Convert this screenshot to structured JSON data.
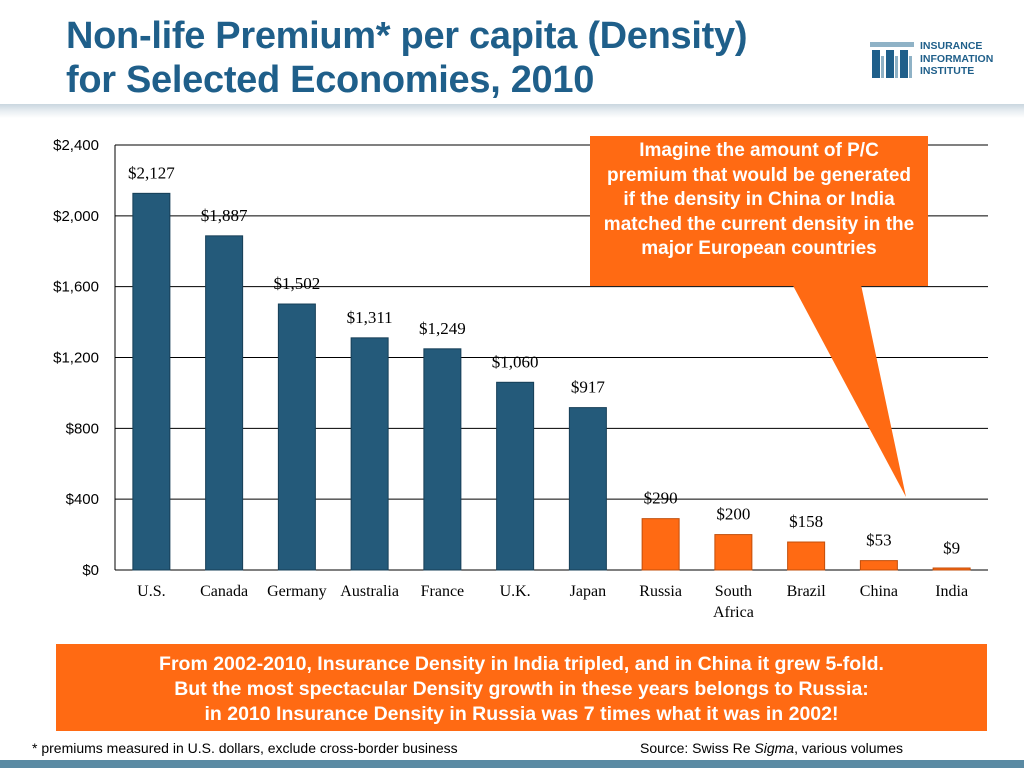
{
  "title_line1": "Non-life Premium* per capita (Density)",
  "title_line2": "for Selected Economies, 2010",
  "logo": {
    "line1": "INSURANCE",
    "line2": "INFORMATION",
    "line3": "INSTITUTE",
    "color": "#1f5f8a"
  },
  "callout_text": "Imagine the amount of P/C premium that would be generated if the density in China or India matched the current density in the major European countries",
  "bottom_box": {
    "line1": "From 2002-2010, Insurance Density in India tripled, and in China it grew 5-fold.",
    "line2": "But the most spectacular Density growth in these years belongs to Russia:",
    "line3": "in 2010 Insurance Density in Russia was 7 times what it was in 2002!"
  },
  "footnote": "* premiums measured in U.S. dollars, exclude cross-border business",
  "source_prefix": "Source: Swiss Re ",
  "source_italic": "Sigma",
  "source_suffix": ", various volumes",
  "colors": {
    "blue_bar": "#245a7a",
    "orange_bar": "#ff6a13",
    "title": "#1f5f8a",
    "callout": "#ff6a13"
  },
  "chart_data": {
    "type": "bar",
    "categories": [
      "U.S.",
      "Canada",
      "Germany",
      "Australia",
      "France",
      "U.K.",
      "Japan",
      "Russia",
      "South Africa",
      "Brazil",
      "China",
      "India"
    ],
    "values": [
      2127,
      1887,
      1502,
      1311,
      1249,
      1060,
      917,
      290,
      200,
      158,
      53,
      9
    ],
    "value_labels": [
      "$2,127",
      "$1,887",
      "$1,502",
      "$1,311",
      "$1,249",
      "$1,060",
      "$917",
      "$290",
      "$200",
      "$158",
      "$53",
      "$9"
    ],
    "bar_colors": [
      "blue",
      "blue",
      "blue",
      "blue",
      "blue",
      "blue",
      "blue",
      "orange",
      "orange",
      "orange",
      "orange",
      "orange"
    ],
    "y_ticks": [
      0,
      400,
      800,
      1200,
      1600,
      2000,
      2400
    ],
    "y_tick_labels": [
      "$0",
      "$400",
      "$800",
      "$1,200",
      "$1,600",
      "$2,000",
      "$2,400"
    ],
    "ylim": [
      0,
      2400
    ],
    "grid": true,
    "title": "",
    "xlabel": "",
    "ylabel": ""
  }
}
